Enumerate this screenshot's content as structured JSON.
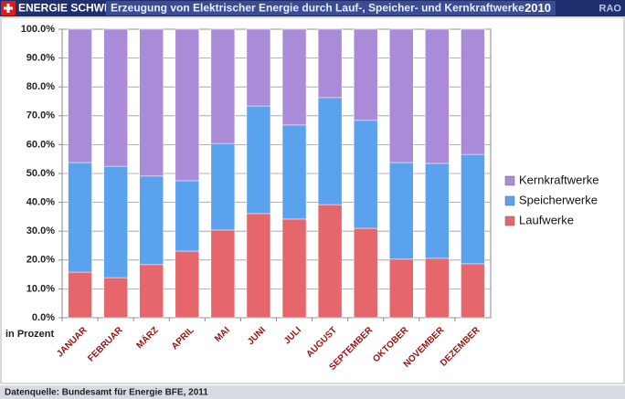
{
  "chart_data": {
    "type": "stacked_bar",
    "brand": "ENERGIE SCHWEIZ",
    "title": "Erzeugung von Elektrischer Energie durch Lauf-, Speicher- und Kernkraftwerke",
    "year": "2010",
    "corner_tag": "RAO",
    "y_label": "in Prozent",
    "source": "Datenquelle: Bundesamt für Energie BFE, 2011",
    "categories": [
      "JANUAR",
      "FEBRUAR",
      "MÄRZ",
      "APRIL",
      "MAI",
      "JUNI",
      "JULI",
      "AUGUST",
      "SEPTEMBER",
      "OKTOBER",
      "NOVEMBER",
      "DEZEMBER"
    ],
    "series": [
      {
        "name": "Laufwerke",
        "color": "#e5676b",
        "values": [
          15.8,
          13.9,
          18.4,
          23.1,
          30.4,
          36.1,
          34.2,
          39.2,
          31.0,
          20.3,
          20.6,
          18.7
        ]
      },
      {
        "name": "Speicherwerke",
        "color": "#5aa2ee",
        "values": [
          38.0,
          38.6,
          30.7,
          24.4,
          30.0,
          37.3,
          32.6,
          37.1,
          37.4,
          33.5,
          32.9,
          37.9
        ]
      },
      {
        "name": "Kernkraftwerke",
        "color": "#a98bd8",
        "values": [
          46.2,
          47.5,
          50.9,
          52.5,
          39.6,
          26.6,
          33.2,
          23.7,
          31.6,
          46.2,
          46.5,
          43.4
        ]
      }
    ],
    "ylim": [
      0,
      100
    ],
    "yticks": [
      {
        "value": 0,
        "label": "0.0%"
      },
      {
        "value": 10,
        "label": "10.0%"
      },
      {
        "value": 20,
        "label": "20.0%"
      },
      {
        "value": 30,
        "label": "30.0%"
      },
      {
        "value": 40,
        "label": "40.0%"
      },
      {
        "value": 50,
        "label": "50.0%"
      },
      {
        "value": 60,
        "label": "60.0%"
      },
      {
        "value": 70,
        "label": "70.0%"
      },
      {
        "value": 80,
        "label": "80.0%"
      },
      {
        "value": 90,
        "label": "90.0%"
      },
      {
        "value": 100,
        "label": "100.0%"
      }
    ],
    "grid": true,
    "legend": "right"
  }
}
